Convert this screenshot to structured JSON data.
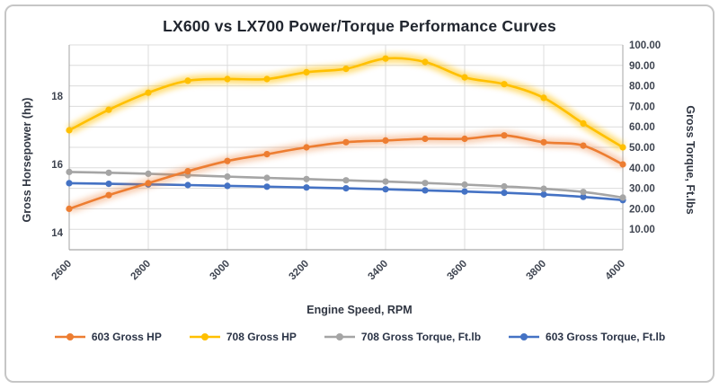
{
  "chart_data": {
    "type": "line",
    "title": "LX600 vs LX700 Power/Torque Performance Curves",
    "xlabel": "Engine Speed, RPM",
    "x": [
      2600,
      2700,
      2800,
      2900,
      3000,
      3100,
      3200,
      3300,
      3400,
      3500,
      3600,
      3700,
      3800,
      3900,
      4000
    ],
    "x_ticks": [
      2600,
      2800,
      3000,
      3200,
      3400,
      3600,
      3800,
      4000
    ],
    "left_axis": {
      "label": "Gross Horsepower (hp)",
      "min": 13.5,
      "max": 19.5,
      "ticks": [
        14,
        16,
        18
      ]
    },
    "right_axis": {
      "label": "Gross Torque, Ft.lbs",
      "min": 0,
      "max": 100,
      "ticks": [
        10,
        20,
        30,
        40,
        50,
        60,
        70,
        80,
        90,
        100
      ],
      "decimals": 2
    },
    "grid": true,
    "legend_position": "bottom",
    "series": [
      {
        "name": "603 Gross HP",
        "axis": "left",
        "color": "#ED7D31",
        "glow": 0.38,
        "values": [
          14.7,
          15.1,
          15.45,
          15.8,
          16.1,
          16.3,
          16.5,
          16.65,
          16.7,
          16.75,
          16.75,
          16.85,
          16.65,
          16.55,
          16.0
        ]
      },
      {
        "name": "708 Gross HP",
        "axis": "left",
        "color": "#FFC000",
        "glow": 0.55,
        "values": [
          17.0,
          17.6,
          18.1,
          18.45,
          18.5,
          18.5,
          18.7,
          18.8,
          19.1,
          19.0,
          18.55,
          18.35,
          17.95,
          17.2,
          16.5
        ]
      },
      {
        "name": "708 Gross Torque, Ft.lb",
        "axis": "right",
        "color": "#A5A5A5",
        "glow": 0,
        "values": [
          38.0,
          37.6,
          37.1,
          36.4,
          35.7,
          35.1,
          34.5,
          33.9,
          33.3,
          32.6,
          31.8,
          30.9,
          29.8,
          28.2,
          25.5
        ]
      },
      {
        "name": "603 Gross Torque, Ft.lb",
        "axis": "right",
        "color": "#4472C4",
        "glow": 0,
        "values": [
          32.5,
          32.2,
          31.9,
          31.6,
          31.2,
          30.8,
          30.4,
          30.0,
          29.5,
          29.0,
          28.4,
          27.8,
          27.0,
          25.8,
          24.2
        ]
      }
    ]
  },
  "theme": {
    "grid_color": "#DCDCDC",
    "axis_line_color": "#A6A6A6",
    "tick_color": "#3E4450",
    "title_color": "#21262F",
    "legend_text_color": "#2A3346",
    "card_border_color": "#C6C6C6",
    "background": "#FFFFFF"
  }
}
